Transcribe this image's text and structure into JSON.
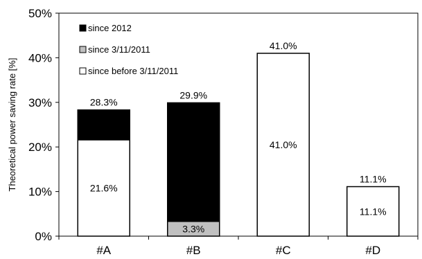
{
  "chart_data": {
    "type": "bar",
    "stacked": true,
    "categories": [
      "#A",
      "#B",
      "#C",
      "#D"
    ],
    "series": [
      {
        "name": "since before 3/11/2011",
        "values": [
          21.6,
          0,
          41.0,
          11.1
        ],
        "color": "#ffffff"
      },
      {
        "name": "since 3/11/2011",
        "values": [
          0,
          3.3,
          0,
          0
        ],
        "color": "#c0c0c0"
      },
      {
        "name": "since 2012",
        "values": [
          6.7,
          26.6,
          0,
          0
        ],
        "color": "#000000"
      }
    ],
    "segment_labels": [
      [
        "21.6%",
        "",
        "41.0%",
        "11.1%"
      ],
      [
        "",
        "3.3%",
        "",
        ""
      ],
      [
        "6.7%",
        "26.6%",
        "",
        ""
      ]
    ],
    "totals": [
      28.3,
      29.9,
      41.0,
      11.1
    ],
    "total_labels": [
      "28.3%",
      "29.9%",
      "41.0%",
      "11.1%"
    ],
    "ylabel": "Theoretical power saving rate [%]",
    "xlabel": "",
    "ylim": [
      0,
      50
    ],
    "yticks": [
      "0%",
      "10%",
      "20%",
      "30%",
      "40%",
      "50%"
    ],
    "yticks_values": [
      0,
      10,
      20,
      30,
      40,
      50
    ],
    "grid": false,
    "legend_position": "top-left"
  }
}
